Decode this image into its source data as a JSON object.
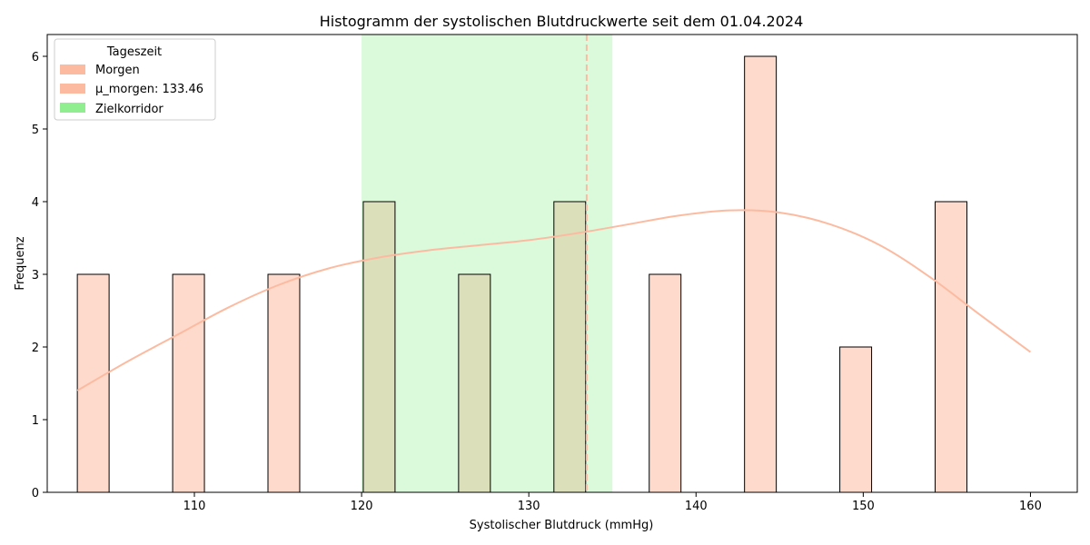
{
  "chart_data": {
    "type": "bar",
    "title": "Histogramm der systolischen Blutdruckwerte seit dem 01.04.2024",
    "xlabel": "Systolischer Blutdruck (mmHg)",
    "ylabel": "Frequenz",
    "xlim": [
      101.2,
      162.8
    ],
    "ylim": [
      0,
      6.3
    ],
    "x_ticks": [
      110,
      120,
      130,
      140,
      150,
      160
    ],
    "y_ticks": [
      0,
      1,
      2,
      3,
      4,
      5,
      6
    ],
    "bins": [
      {
        "start": 103.0,
        "end": 104.9,
        "count": 3
      },
      {
        "start": 108.7,
        "end": 110.6,
        "count": 3
      },
      {
        "start": 114.4,
        "end": 116.3,
        "count": 3
      },
      {
        "start": 120.1,
        "end": 122.0,
        "count": 4
      },
      {
        "start": 125.8,
        "end": 127.7,
        "count": 3
      },
      {
        "start": 131.5,
        "end": 133.4,
        "count": 4
      },
      {
        "start": 137.2,
        "end": 139.1,
        "count": 3
      },
      {
        "start": 142.9,
        "end": 144.8,
        "count": 6
      },
      {
        "start": 148.6,
        "end": 150.5,
        "count": 2
      },
      {
        "start": 154.3,
        "end": 156.2,
        "count": 4
      }
    ],
    "bar_color": "#fcbba1",
    "bar_in_corridor_color": "#dbdfba",
    "kde": {
      "x": [
        103,
        106,
        109,
        112,
        115,
        118,
        121,
        124,
        127,
        130,
        133,
        136,
        139,
        142,
        145,
        148,
        151,
        154,
        157,
        160
      ],
      "y": [
        1.4,
        1.8,
        2.17,
        2.54,
        2.85,
        3.08,
        3.23,
        3.33,
        3.4,
        3.47,
        3.57,
        3.69,
        3.81,
        3.88,
        3.85,
        3.69,
        3.4,
        2.96,
        2.44,
        1.93
      ],
      "color": "#fcbba1"
    },
    "mean_line": {
      "value": 133.46,
      "color": "#fcbba1"
    },
    "target_corridor": {
      "from": 120,
      "to": 135,
      "color": "#90ee90"
    },
    "legend": {
      "title": "Tageszeit",
      "position": "top-left",
      "entries": [
        {
          "label": "Morgen",
          "color": "#fcbba1"
        },
        {
          "label": "µ_morgen: 133.46",
          "color": "#fcbba1"
        },
        {
          "label": "Zielkorridor",
          "color": "#90ee90"
        }
      ]
    },
    "grid": false
  }
}
